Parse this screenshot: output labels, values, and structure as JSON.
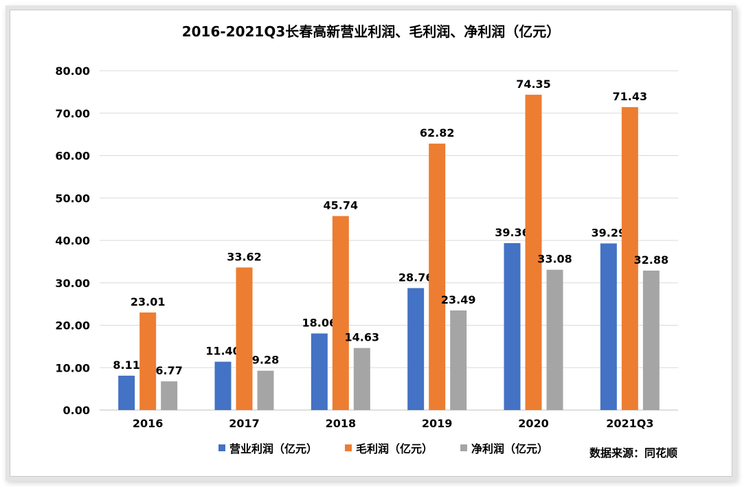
{
  "title": "2016-2021Q3长春高新营业利润、毛利润、净利润（亿元）",
  "source": "数据来源：同花顺",
  "colors": {
    "series_0": "#4472c4",
    "series_1": "#ed7d31",
    "series_2": "#a5a5a5"
  },
  "chart_data": {
    "type": "bar",
    "title": "2016-2021Q3长春高新营业利润、毛利润、净利润（亿元）",
    "categories": [
      "2016",
      "2017",
      "2018",
      "2019",
      "2020",
      "2021Q3"
    ],
    "series": [
      {
        "name": "营业利润（亿元）",
        "values": [
          8.11,
          11.4,
          18.06,
          28.76,
          39.36,
          39.29
        ]
      },
      {
        "name": "毛利润（亿元）",
        "values": [
          23.01,
          33.62,
          45.74,
          62.82,
          74.35,
          71.43
        ]
      },
      {
        "name": "净利润（亿元）",
        "values": [
          6.77,
          9.28,
          14.63,
          23.49,
          33.08,
          32.88
        ]
      }
    ],
    "y_ticks": [
      "0.00",
      "10.00",
      "20.00",
      "30.00",
      "40.00",
      "50.00",
      "60.00",
      "70.00",
      "80.00"
    ],
    "ylim": [
      0,
      80
    ],
    "grid": true,
    "legend_position": "bottom",
    "data_labels": true
  }
}
